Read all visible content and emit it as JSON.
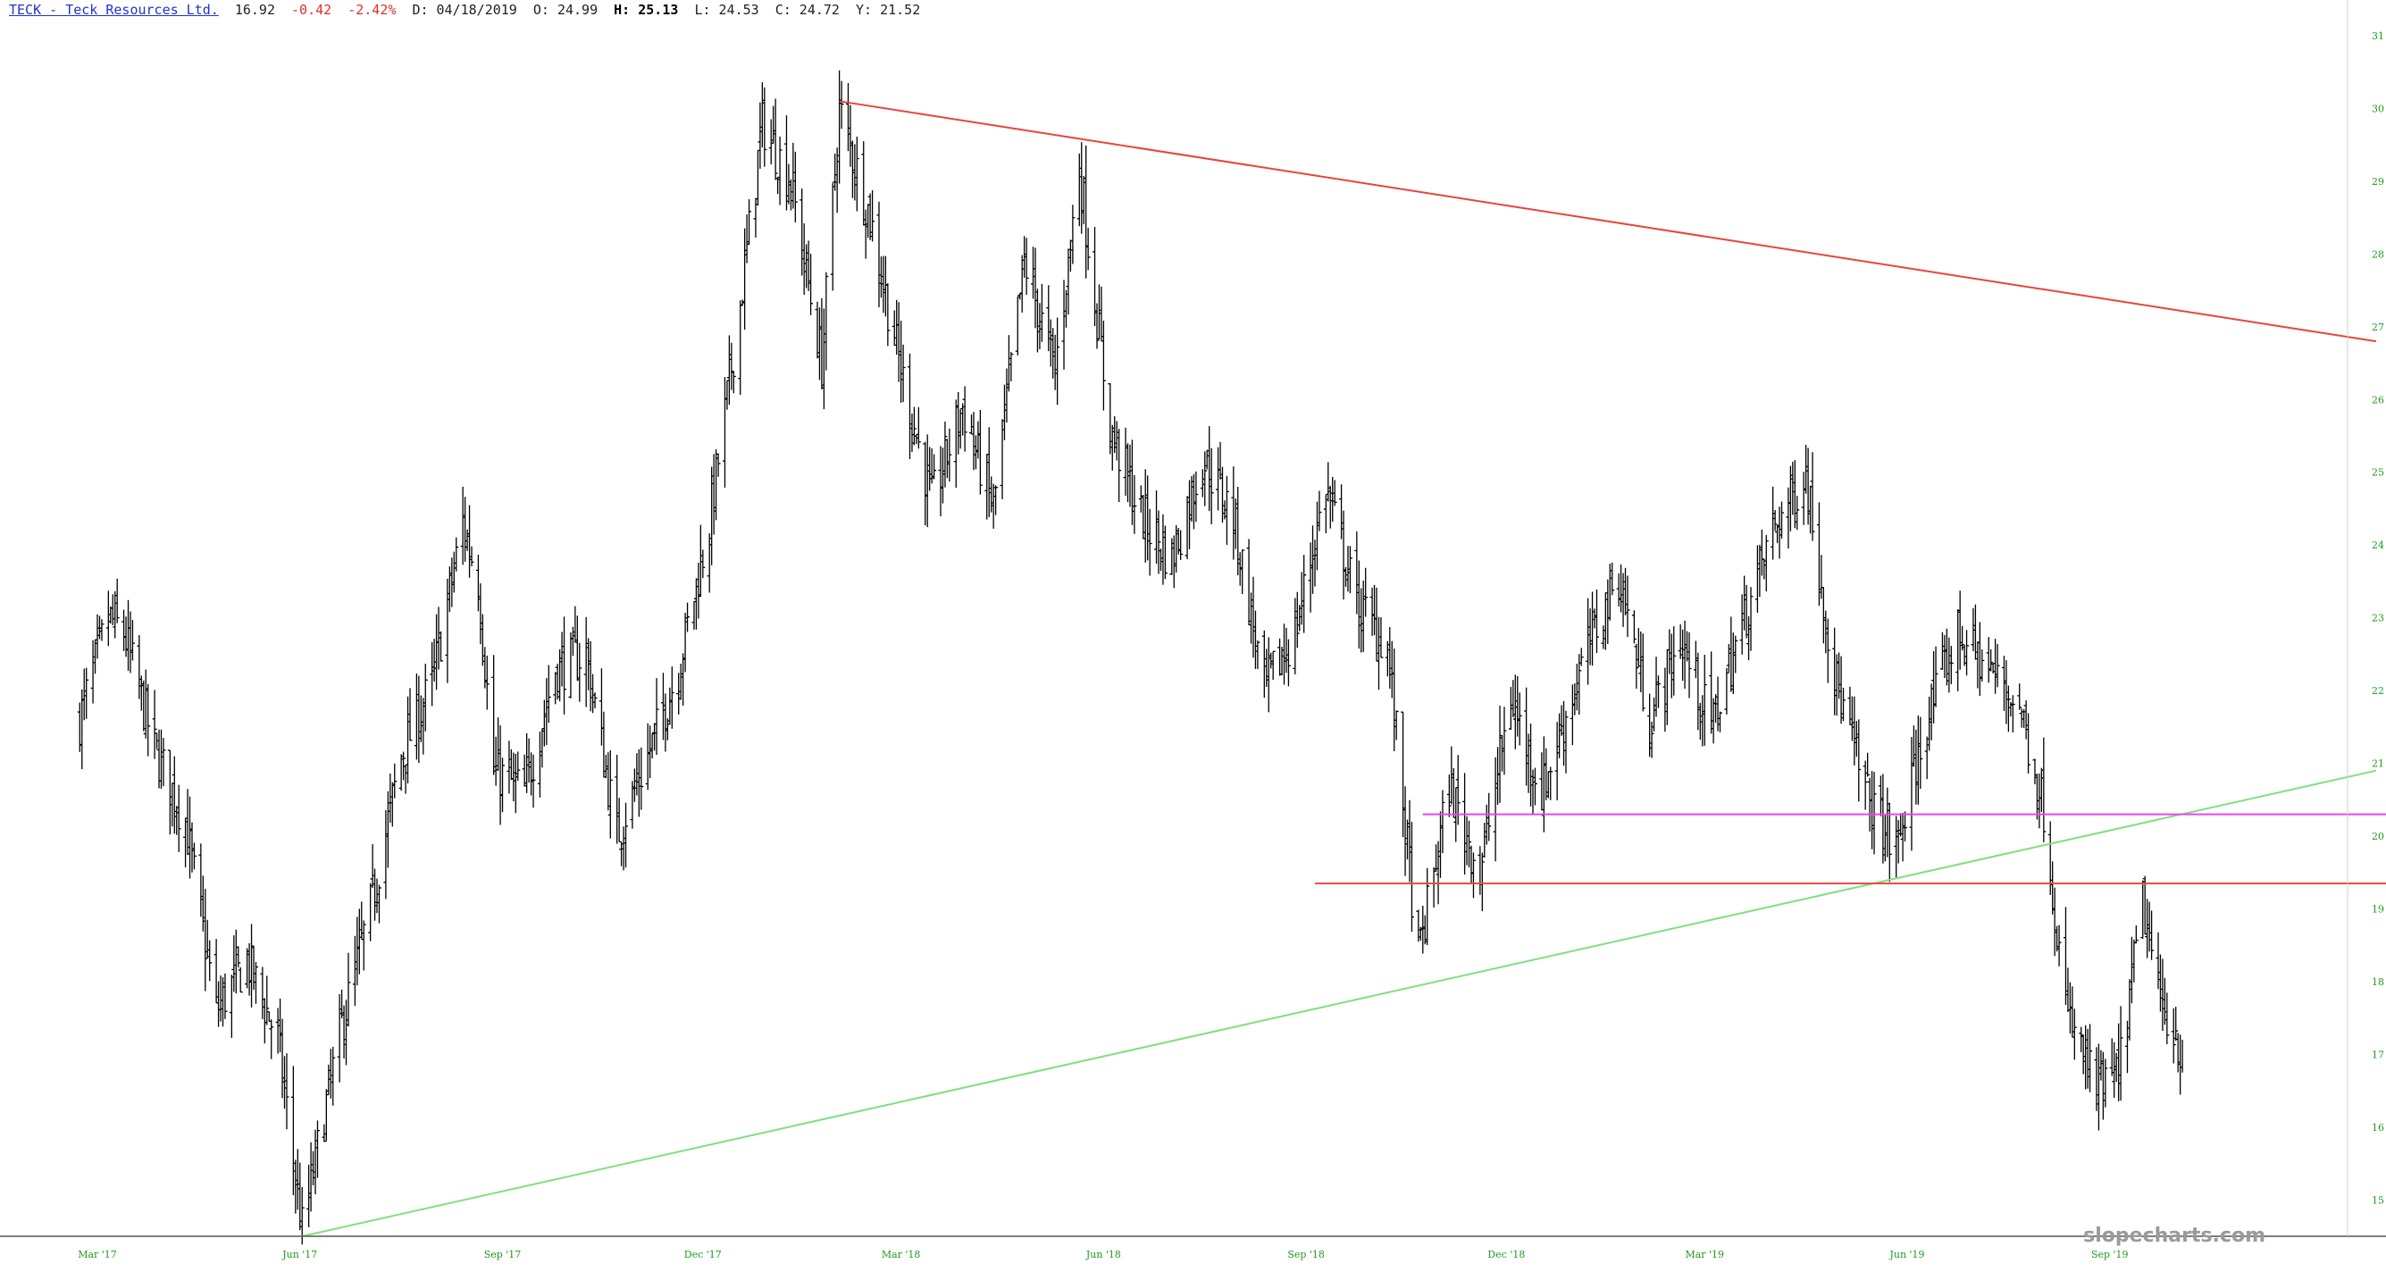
{
  "header": {
    "symbol": "TECK - Teck Resources Ltd.",
    "last": "16.92",
    "change": "-0.42",
    "change_pct": "-2.42%",
    "date": "D: 04/18/2019",
    "open": "O: 24.99",
    "high_label": "H:",
    "high_value": "25.13",
    "low": "L: 24.53",
    "close": "C: 24.72",
    "year": "Y: 21.52"
  },
  "watermark": "slopecharts.com",
  "colors": {
    "bars": "#000000",
    "resistance_trendline": "#e8443a",
    "support_trendline": "#7fe07f",
    "magenta_level": "#ee44ee",
    "red_level": "#ee4a44",
    "axis_text": "#1f9a1f"
  },
  "chart_data": {
    "type": "ohlc",
    "title": "TECK - Teck Resources Ltd.",
    "y_ticks": [
      15,
      16,
      17,
      18,
      19,
      20,
      21,
      22,
      23,
      24,
      25,
      26,
      27,
      28,
      29,
      30,
      31
    ],
    "ylim": [
      14.5,
      31.0
    ],
    "x_ticks": [
      "Mar '17",
      "Jun '17",
      "Sep '17",
      "Dec '17",
      "Mar '18",
      "Jun '18",
      "Sep '18",
      "Dec '18",
      "Mar '19",
      "Jun '19",
      "Sep '19"
    ],
    "x_tick_positions": [
      "2017-03-01",
      "2017-06-01",
      "2017-09-01",
      "2017-12-01",
      "2018-03-01",
      "2018-06-01",
      "2018-09-01",
      "2018-12-01",
      "2019-03-01",
      "2019-06-01",
      "2019-09-01"
    ],
    "xlim": [
      "2017-02-01",
      "2019-12-31"
    ],
    "price_path": [
      [
        "2017-02-21",
        21.6
      ],
      [
        "2017-03-06",
        23.0
      ],
      [
        "2017-03-13",
        22.8
      ],
      [
        "2017-03-27",
        21.2
      ],
      [
        "2017-04-10",
        20.2
      ],
      [
        "2017-04-24",
        17.6
      ],
      [
        "2017-05-08",
        18.3
      ],
      [
        "2017-05-22",
        17.2
      ],
      [
        "2017-06-02",
        14.6
      ],
      [
        "2017-06-20",
        17.4
      ],
      [
        "2017-07-03",
        19.0
      ],
      [
        "2017-07-17",
        21.1
      ],
      [
        "2017-07-31",
        22.1
      ],
      [
        "2017-08-14",
        24.3
      ],
      [
        "2017-08-21",
        23.5
      ],
      [
        "2017-08-28",
        20.9
      ],
      [
        "2017-09-11",
        20.6
      ],
      [
        "2017-09-25",
        22.3
      ],
      [
        "2017-10-09",
        22.5
      ],
      [
        "2017-10-23",
        20.0
      ],
      [
        "2017-11-06",
        21.1
      ],
      [
        "2017-11-20",
        22.3
      ],
      [
        "2017-12-04",
        24.3
      ],
      [
        "2017-12-18",
        27.3
      ],
      [
        "2017-12-28",
        29.8
      ],
      [
        "2018-01-10",
        29.0
      ],
      [
        "2018-01-24",
        26.5
      ],
      [
        "2018-02-01",
        30.0
      ],
      [
        "2018-02-15",
        28.5
      ],
      [
        "2018-03-01",
        26.4
      ],
      [
        "2018-03-15",
        24.6
      ],
      [
        "2018-03-29",
        25.9
      ],
      [
        "2018-04-12",
        24.5
      ],
      [
        "2018-04-26",
        27.9
      ],
      [
        "2018-05-10",
        26.4
      ],
      [
        "2018-05-21",
        29.2
      ],
      [
        "2018-06-04",
        25.6
      ],
      [
        "2018-06-18",
        24.4
      ],
      [
        "2018-07-02",
        23.8
      ],
      [
        "2018-07-16",
        25.2
      ],
      [
        "2018-07-30",
        24.4
      ],
      [
        "2018-08-13",
        22.0
      ],
      [
        "2018-08-27",
        22.8
      ],
      [
        "2018-09-10",
        24.8
      ],
      [
        "2018-09-24",
        23.2
      ],
      [
        "2018-10-08",
        22.6
      ],
      [
        "2018-10-22",
        18.3
      ],
      [
        "2018-11-05",
        20.7
      ],
      [
        "2018-11-19",
        19.5
      ],
      [
        "2018-12-03",
        21.9
      ],
      [
        "2018-12-17",
        20.6
      ],
      [
        "2019-01-07",
        22.6
      ],
      [
        "2019-01-21",
        23.6
      ],
      [
        "2019-02-04",
        21.6
      ],
      [
        "2019-02-18",
        22.7
      ],
      [
        "2019-03-04",
        21.5
      ],
      [
        "2019-03-18",
        22.9
      ],
      [
        "2019-04-01",
        24.2
      ],
      [
        "2019-04-16",
        25.0
      ],
      [
        "2019-04-29",
        22.2
      ],
      [
        "2019-05-13",
        20.6
      ],
      [
        "2019-05-27",
        19.8
      ],
      [
        "2019-06-10",
        21.6
      ],
      [
        "2019-06-24",
        22.8
      ],
      [
        "2019-07-08",
        22.3
      ],
      [
        "2019-07-22",
        21.8
      ],
      [
        "2019-08-02",
        20.4
      ],
      [
        "2019-08-12",
        17.6
      ],
      [
        "2019-08-26",
        16.5
      ],
      [
        "2019-09-05",
        16.7
      ],
      [
        "2019-09-16",
        19.1
      ],
      [
        "2019-09-23",
        17.8
      ],
      [
        "2019-10-01",
        17.3
      ],
      [
        "2019-10-04",
        16.9
      ]
    ],
    "annotations": [
      {
        "kind": "trendline",
        "name": "resistance",
        "from": [
          "2018-02-01",
          30.1
        ],
        "to": [
          "2019-12-31",
          26.8
        ]
      },
      {
        "kind": "trendline",
        "name": "support",
        "from": [
          "2017-06-02",
          14.5
        ],
        "to": [
          "2019-12-31",
          20.9
        ]
      },
      {
        "kind": "hline",
        "name": "magenta-level",
        "y": 20.3,
        "from": "2018-10-24"
      },
      {
        "kind": "hline",
        "name": "red-level",
        "y": 19.35,
        "from": "2018-09-05"
      }
    ]
  }
}
